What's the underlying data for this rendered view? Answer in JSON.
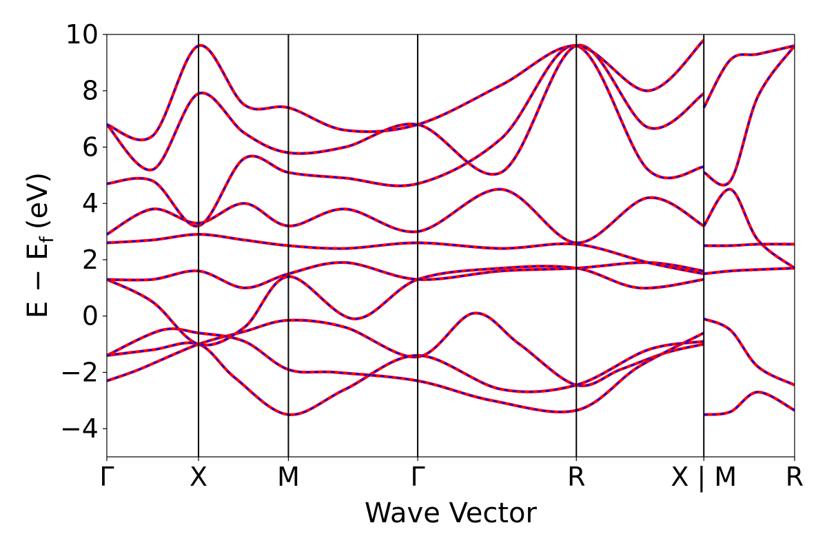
{
  "chart_data": {
    "type": "line",
    "title": "",
    "xlabel": "Wave Vector",
    "ylabel": "E − E",
    "ylabel_subscript": "f",
    "ylabel_unit": "(eV)",
    "ylim": [
      -5,
      10
    ],
    "yticks": [
      -4,
      -2,
      0,
      2,
      4,
      6,
      8,
      10
    ],
    "ytick_labels": [
      "−4",
      "−2",
      "0",
      "2",
      "4",
      "6",
      "8",
      "10"
    ],
    "xlim": [
      0,
      7.5
    ],
    "high_symmetry_points": [
      {
        "label": "Γ",
        "x": 0
      },
      {
        "label": "X",
        "x": 1
      },
      {
        "label": "M",
        "x": 1.98
      },
      {
        "label": "Γ",
        "x": 3.39
      },
      {
        "label": "R",
        "x": 5.12
      },
      {
        "label": "X | M",
        "x": 6.51
      },
      {
        "label": "R",
        "x": 7.5
      }
    ],
    "grid": false,
    "legend": "none",
    "series_style": {
      "reference_color": "#0000ff",
      "reference_dash": "dashed",
      "overlay_color": "#ff0000"
    },
    "series": [
      {
        "x": [
          0,
          0.35,
          1,
          1.5,
          1.98,
          2.6,
          3.39,
          4,
          4.5,
          5.12,
          5.6,
          6.1,
          6.51
        ],
        "y": [
          -2.3,
          -1.9,
          -1.0,
          -0.55,
          -0.15,
          -0.4,
          -1.45,
          0.1,
          -1.0,
          -2.45,
          -1.9,
          -1.3,
          -1.0
        ]
      },
      {
        "x": [
          0,
          0.6,
          1,
          1.5,
          1.98,
          2.5,
          3.39,
          4.2,
          5.12,
          5.8,
          6.51
        ],
        "y": [
          -1.4,
          -0.5,
          -0.6,
          -0.9,
          -1.9,
          -2.0,
          -2.3,
          -3.0,
          -3.35,
          -1.8,
          -0.6
        ]
      },
      {
        "x": [
          0,
          0.5,
          1,
          1.4,
          1.98,
          2.6,
          3.39,
          4.3,
          5.12,
          5.9,
          6.51
        ],
        "y": [
          -1.4,
          -1.2,
          -1.0,
          -2.2,
          -3.5,
          -2.6,
          -1.4,
          -2.6,
          -2.45,
          -1.2,
          -0.9
        ]
      },
      {
        "x": [
          0,
          0.5,
          1,
          1.5,
          1.98,
          2.7,
          3.39,
          4.3,
          5.12,
          5.8,
          6.51
        ],
        "y": [
          1.3,
          0.5,
          -1.0,
          -0.4,
          1.4,
          -0.1,
          1.3,
          1.7,
          1.7,
          1.0,
          1.3
        ]
      },
      {
        "x": [
          0,
          0.5,
          1,
          1.5,
          1.98,
          2.6,
          3.39,
          4.3,
          5.12,
          5.9,
          6.51
        ],
        "y": [
          1.3,
          1.3,
          1.6,
          1.0,
          1.5,
          1.9,
          1.3,
          1.6,
          1.7,
          1.9,
          1.6
        ]
      },
      {
        "x": [
          0,
          0.5,
          1,
          1.5,
          1.98,
          2.6,
          3.39,
          4.3,
          5.12,
          5.9,
          6.51
        ],
        "y": [
          2.6,
          2.7,
          2.9,
          2.7,
          2.5,
          2.4,
          2.6,
          2.4,
          2.55,
          1.9,
          1.5
        ]
      },
      {
        "x": [
          0,
          0.5,
          1,
          1.5,
          1.98,
          2.6,
          3.39,
          4.3,
          5.12,
          5.9,
          6.51
        ],
        "y": [
          2.9,
          3.8,
          3.3,
          4.0,
          3.2,
          3.8,
          3.0,
          4.5,
          2.6,
          4.2,
          3.2
        ]
      },
      {
        "x": [
          0,
          0.5,
          1,
          1.5,
          1.98,
          2.6,
          3.39,
          4.3,
          5.12,
          5.9,
          6.51
        ],
        "y": [
          4.7,
          4.8,
          3.2,
          5.6,
          5.1,
          4.9,
          4.7,
          6.3,
          9.6,
          5.2,
          5.3
        ]
      },
      {
        "x": [
          0,
          0.5,
          1,
          1.5,
          1.98,
          2.6,
          3.39,
          4.3,
          5.12,
          5.9,
          6.51
        ],
        "y": [
          6.8,
          5.2,
          7.9,
          6.5,
          5.8,
          6.0,
          6.8,
          5.1,
          9.6,
          6.7,
          7.9
        ]
      },
      {
        "x": [
          0,
          0.5,
          1,
          1.5,
          1.98,
          2.6,
          3.39,
          4.3,
          5.12,
          5.9,
          6.51
        ],
        "y": [
          6.8,
          6.4,
          9.6,
          7.5,
          7.4,
          6.6,
          6.8,
          8.2,
          9.6,
          8.0,
          9.8
        ]
      },
      {
        "x": [
          6.51,
          6.8,
          7.1,
          7.5
        ],
        "y": [
          -3.5,
          -3.4,
          -2.7,
          -3.35
        ]
      },
      {
        "x": [
          6.51,
          6.8,
          7.1,
          7.5
        ],
        "y": [
          -0.1,
          -0.5,
          -1.8,
          -2.45
        ]
      },
      {
        "x": [
          6.51,
          6.8,
          7.1,
          7.5
        ],
        "y": [
          1.5,
          1.6,
          1.65,
          1.7
        ]
      },
      {
        "x": [
          6.51,
          6.8,
          7.1,
          7.5
        ],
        "y": [
          2.5,
          2.5,
          2.55,
          2.55
        ]
      },
      {
        "x": [
          6.51,
          6.8,
          7.1,
          7.5
        ],
        "y": [
          3.2,
          4.5,
          2.7,
          1.7
        ]
      },
      {
        "x": [
          6.51,
          6.8,
          7.1,
          7.5
        ],
        "y": [
          5.1,
          4.8,
          7.8,
          9.6
        ]
      },
      {
        "x": [
          6.51,
          6.8,
          7.1,
          7.5
        ],
        "y": [
          7.4,
          9.1,
          9.3,
          9.6
        ]
      }
    ]
  }
}
